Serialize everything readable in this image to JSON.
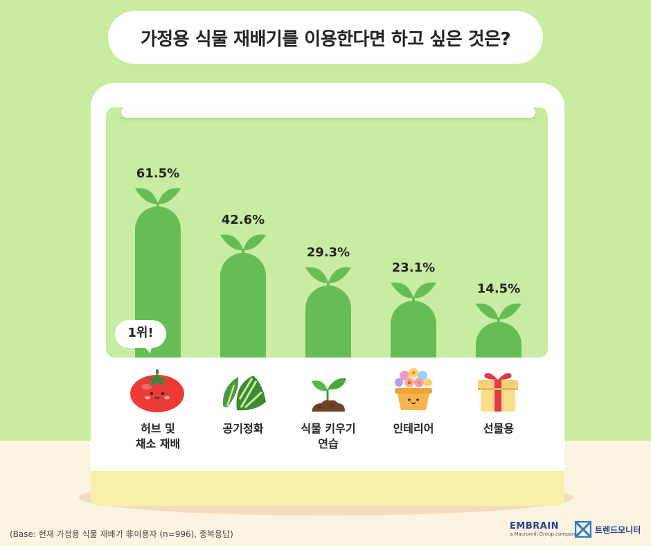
{
  "title": "가정용 식물 재배기를 이용한다면 하고 싶은 것은?",
  "badge": "1위!",
  "chart_data": {
    "type": "bar",
    "title": "가정용 식물 재배기를 이용한다면 하고 싶은 것은?",
    "categories": [
      "허브 및\n채소 재배",
      "공기정화",
      "식물 키우기\n연습",
      "인테리어",
      "선물용"
    ],
    "values": [
      61.5,
      42.6,
      29.3,
      23.1,
      14.5
    ],
    "value_labels": [
      "61.5%",
      "42.6%",
      "29.3%",
      "23.1%",
      "14.5%"
    ],
    "unit": "%",
    "ylim": [
      0,
      61.5
    ],
    "grid": false,
    "colors": {
      "bar": "#66bd55",
      "leaf": "#66bd55",
      "background": "#c9eca0"
    }
  },
  "icons": [
    "tomato-icon",
    "monstera-leaf-icon",
    "sprout-in-soil-icon",
    "flower-pot-icon",
    "gift-box-icon"
  ],
  "footnote": "(Base: 현재 가정용 식물 재배기 非이용자 (n=996), 중복응답)",
  "brand": {
    "embrain": "EMBRAIN",
    "embrain_sub": "a Macromill Group company",
    "trendmonitor": "트렌드모니터"
  }
}
